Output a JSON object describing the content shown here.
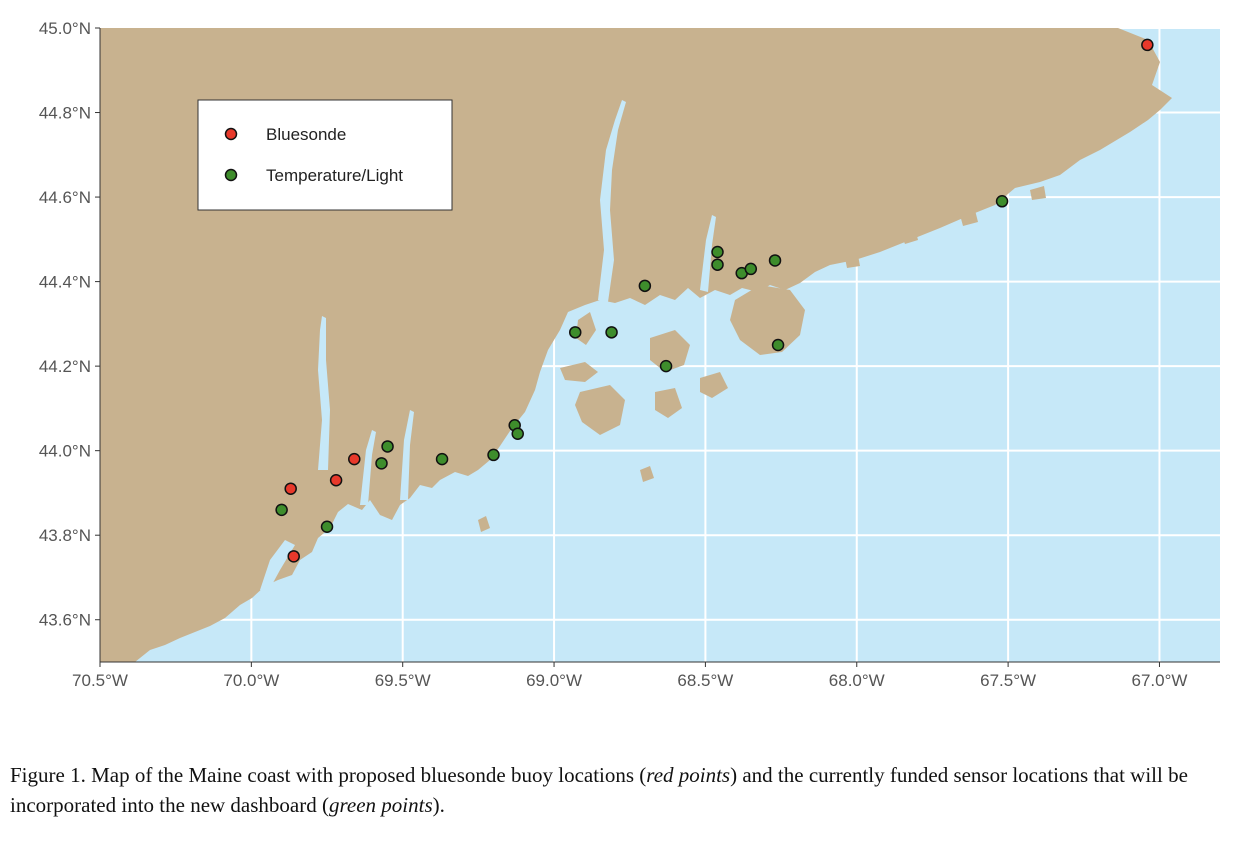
{
  "colors": {
    "water": "#c6e8f8",
    "land": "#c8b28f",
    "grid": "#ffffff",
    "bluesonde": "#e8392b",
    "temperature_light": "#3e8d2c"
  },
  "chart_data": {
    "type": "scatter",
    "x_range": [
      -70.5,
      -66.8
    ],
    "y_range": [
      43.5,
      45.0
    ],
    "x_ticks": [
      -70.5,
      -70.0,
      -69.5,
      -69.0,
      -68.5,
      -68.0,
      -67.5,
      -67.0
    ],
    "x_tick_labels": [
      "70.5°W",
      "70.0°W",
      "69.5°W",
      "69.0°W",
      "68.5°W",
      "68.0°W",
      "67.5°W",
      "67.0°W"
    ],
    "y_ticks": [
      43.6,
      43.8,
      44.0,
      44.2,
      44.4,
      44.6,
      44.8,
      45.0
    ],
    "y_tick_labels": [
      "43.6°N",
      "43.8°N",
      "44.0°N",
      "44.2°N",
      "44.4°N",
      "44.6°N",
      "44.8°N",
      "45.0°N"
    ],
    "grid": true,
    "legend_position": "top-left",
    "series": [
      {
        "name": "Bluesonde",
        "points": [
          [
            -67.04,
            44.96
          ],
          [
            -69.87,
            43.91
          ],
          [
            -69.72,
            43.93
          ],
          [
            -69.66,
            43.98
          ],
          [
            -69.86,
            43.75
          ]
        ]
      },
      {
        "name": "Temperature/Light",
        "points": [
          [
            -67.52,
            44.59
          ],
          [
            -68.46,
            44.47
          ],
          [
            -68.46,
            44.44
          ],
          [
            -68.38,
            44.42
          ],
          [
            -68.35,
            44.43
          ],
          [
            -68.27,
            44.45
          ],
          [
            -68.7,
            44.39
          ],
          [
            -68.93,
            44.28
          ],
          [
            -68.81,
            44.28
          ],
          [
            -68.63,
            44.2
          ],
          [
            -68.26,
            44.25
          ],
          [
            -69.13,
            44.06
          ],
          [
            -69.12,
            44.04
          ],
          [
            -69.2,
            43.99
          ],
          [
            -69.37,
            43.98
          ],
          [
            -69.55,
            44.01
          ],
          [
            -69.57,
            43.97
          ],
          [
            -69.9,
            43.86
          ],
          [
            -69.75,
            43.82
          ]
        ]
      }
    ]
  },
  "legend": {
    "items": [
      {
        "label": "Bluesonde"
      },
      {
        "label": "Temperature/Light"
      }
    ]
  },
  "caption": {
    "prefix": "Figure 1. Map of the Maine coast with proposed bluesonde buoy locations (",
    "red_points": "red points",
    "middle": ") and the currently funded sensor locations that will be incorporated into the new dashboard  (",
    "green_points": "green points",
    "suffix": ")."
  }
}
